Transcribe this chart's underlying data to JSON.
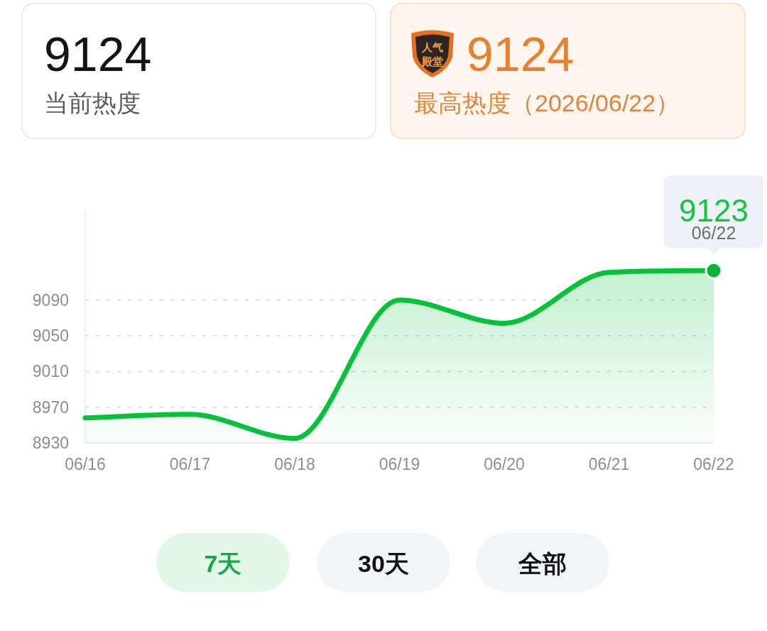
{
  "chart_data": [
    {
      "type": "other",
      "annotations": [
        "9124",
        "当前热度",
        "人气",
        "殿堂",
        "9124",
        "最高热度（2026/06/22）"
      ]
    },
    {
      "type": "area",
      "categories": [
        "06/16",
        "06/17",
        "06/18",
        "06/19",
        "06/20",
        "06/21",
        "06/22"
      ],
      "series": [
        {
          "color": "#07c13b",
          "values": [
            8958,
            8962,
            8935,
            9090,
            9064,
            9121,
            9123
          ],
          "value_labels": [
            null,
            null,
            null,
            null,
            null,
            null,
            "9123"
          ]
        }
      ],
      "ylim": [
        8930,
        9190
      ],
      "yticks": [
        8930,
        8970,
        9010,
        9050,
        9090
      ],
      "grid": "y",
      "annotations": [
        {
          "text": "06/22",
          "x": "06/22",
          "y": 9123
        },
        "7天",
        "30天",
        "全部"
      ]
    }
  ]
}
